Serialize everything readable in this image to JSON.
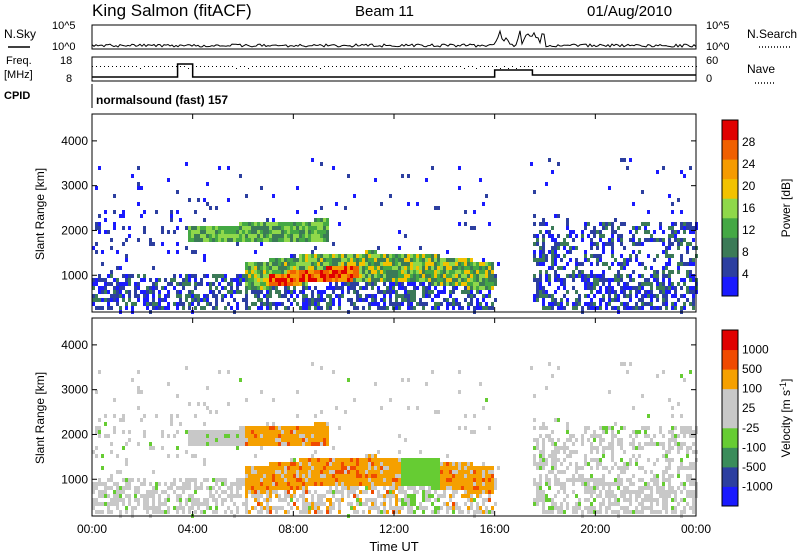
{
  "header": {
    "radar": "King Salmon (fitACF)",
    "beam": "Beam 11",
    "date": "01/Aug/2010"
  },
  "noise_panel": {
    "left_label": "N.Sky",
    "right_label": "N.Search",
    "left_ticks": [
      "10^5",
      "10^0"
    ],
    "right_ticks": [
      "10^5",
      "10^0"
    ]
  },
  "freq_panel": {
    "left_label_top": "Freq.",
    "left_label_unit": "[MHz]",
    "left_ticks": [
      "18",
      "8"
    ],
    "right_label": "Nave",
    "right_ticks": [
      "60",
      "0"
    ]
  },
  "cpid_panel": {
    "label": "CPID",
    "program": "normalsound (fast) 157"
  },
  "colors": {
    "power_scale": [
      "#1a1aff",
      "#2c3fa0",
      "#3b7a57",
      "#44a844",
      "#8fd84a",
      "#f2c200",
      "#f59b00",
      "#f06000",
      "#e00000"
    ],
    "velocity_scale": [
      "#e00000",
      "#f04a00",
      "#f5a000",
      "#c8c8c8",
      "#c8c8c8",
      "#66cc33",
      "#3a8c5a",
      "#2c3fa0",
      "#1a1aff"
    ]
  },
  "chart_data": [
    {
      "type": "heatmap",
      "title": "Power",
      "ylabel": "Slant Range [km]",
      "xlabel": "Time UT",
      "x_ticks": [
        "00:00",
        "04:00",
        "08:00",
        "12:00",
        "16:00",
        "20:00",
        "00:00"
      ],
      "x_range_hours": [
        0,
        24
      ],
      "y_ticks": [
        1000,
        2000,
        3000,
        4000
      ],
      "ylim": [
        180,
        4600
      ],
      "colorbar": {
        "label": "Power [dB]",
        "ticks": [
          "4",
          "8",
          "12",
          "16",
          "20",
          "24",
          "28"
        ],
        "range": [
          0,
          30
        ]
      },
      "regions": [
        {
          "t0": 6.0,
          "t1": 15.8,
          "r0": 650,
          "r1": 1450,
          "level": "high"
        },
        {
          "t0": 3.8,
          "t1": 9.2,
          "r0": 1650,
          "r1": 2250,
          "level": "mid"
        },
        {
          "t0": 0.0,
          "t1": 16.0,
          "r0": 300,
          "r1": 1100,
          "level": "low"
        },
        {
          "t0": 17.5,
          "t1": 24.0,
          "r0": 300,
          "r1": 1600,
          "level": "low"
        }
      ]
    },
    {
      "type": "heatmap",
      "title": "Velocity",
      "ylabel": "Slant Range [km]",
      "xlabel": "Time UT",
      "x_ticks": [
        "00:00",
        "04:00",
        "08:00",
        "12:00",
        "16:00",
        "20:00",
        "00:00"
      ],
      "x_range_hours": [
        0,
        24
      ],
      "y_ticks": [
        1000,
        2000,
        3000,
        4000
      ],
      "ylim": [
        180,
        4600
      ],
      "colorbar": {
        "label": "Velocity [m s^-1]",
        "ticks": [
          "1000",
          "500",
          "100",
          "25",
          "-25",
          "-100",
          "-500",
          "-1000"
        ],
        "range": [
          -1000,
          1000
        ]
      }
    }
  ],
  "x_axis": {
    "ticks": [
      "00:00",
      "04:00",
      "08:00",
      "12:00",
      "16:00",
      "20:00",
      "00:00"
    ],
    "label": "Time UT"
  },
  "power_panel": {
    "ylabel": "Slant Range [km]",
    "y_ticks": [
      "1000",
      "2000",
      "3000",
      "4000"
    ]
  },
  "velocity_panel": {
    "ylabel": "Slant Range [km]",
    "y_ticks": [
      "1000",
      "2000",
      "3000",
      "4000"
    ]
  },
  "power_colorbar": {
    "label": "Power [dB]",
    "ticks": [
      "4",
      "8",
      "12",
      "16",
      "20",
      "24",
      "28"
    ]
  },
  "velocity_colorbar": {
    "label": "Velocity [m s",
    "label_sup": "-1",
    "label_end": "]",
    "ticks": [
      "1000",
      "500",
      "100",
      "25",
      "-25",
      "-100",
      "-500",
      "-1000"
    ]
  }
}
